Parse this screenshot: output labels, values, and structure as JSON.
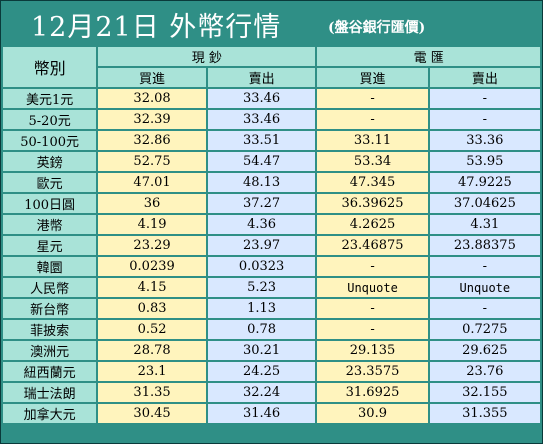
{
  "title": "12月21日 外幣行情",
  "source": "(盤谷銀行匯價)",
  "header": {
    "currency": "幣別",
    "cash_group": "現 鈔",
    "wire_group": "電 匯",
    "buy": "買進",
    "sell": "賣出"
  },
  "rows": [
    {
      "name": "美元1元",
      "cash_buy": "32.08",
      "cash_sell": "33.46",
      "wire_buy": "-",
      "wire_sell": "-"
    },
    {
      "name": "5-20元",
      "cash_buy": "32.39",
      "cash_sell": "33.46",
      "wire_buy": "-",
      "wire_sell": "-"
    },
    {
      "name": "50-100元",
      "cash_buy": "32.86",
      "cash_sell": "33.51",
      "wire_buy": "33.11",
      "wire_sell": "33.36"
    },
    {
      "name": "英鎊",
      "cash_buy": "52.75",
      "cash_sell": "54.47",
      "wire_buy": "53.34",
      "wire_sell": "53.95"
    },
    {
      "name": "歐元",
      "cash_buy": "47.01",
      "cash_sell": "48.13",
      "wire_buy": "47.345",
      "wire_sell": "47.9225"
    },
    {
      "name": "100日圓",
      "cash_buy": "36",
      "cash_sell": "37.27",
      "wire_buy": "36.39625",
      "wire_sell": "37.04625"
    },
    {
      "name": "港幣",
      "cash_buy": "4.19",
      "cash_sell": "4.36",
      "wire_buy": "4.2625",
      "wire_sell": "4.31"
    },
    {
      "name": "星元",
      "cash_buy": "23.29",
      "cash_sell": "23.97",
      "wire_buy": "23.46875",
      "wire_sell": "23.88375"
    },
    {
      "name": "韓圜",
      "cash_buy": "0.0239",
      "cash_sell": "0.0323",
      "wire_buy": "-",
      "wire_sell": "-"
    },
    {
      "name": "人民幣",
      "cash_buy": "4.15",
      "cash_sell": "5.23",
      "wire_buy": "Unquote",
      "wire_sell": "Unquote"
    },
    {
      "name": "新台幣",
      "cash_buy": "0.83",
      "cash_sell": "1.13",
      "wire_buy": "-",
      "wire_sell": "-"
    },
    {
      "name": "菲披索",
      "cash_buy": "0.52",
      "cash_sell": "0.78",
      "wire_buy": "-",
      "wire_sell": "0.7275"
    },
    {
      "name": "澳洲元",
      "cash_buy": "28.78",
      "cash_sell": "30.21",
      "wire_buy": "29.135",
      "wire_sell": "29.625"
    },
    {
      "name": "紐西蘭元",
      "cash_buy": "23.1",
      "cash_sell": "24.25",
      "wire_buy": "23.3575",
      "wire_sell": "23.76"
    },
    {
      "name": "瑞士法朗",
      "cash_buy": "31.35",
      "cash_sell": "32.24",
      "wire_buy": "31.6925",
      "wire_sell": "32.155"
    },
    {
      "name": "加拿大元",
      "cash_buy": "30.45",
      "cash_sell": "31.46",
      "wire_buy": "30.9",
      "wire_sell": "31.355"
    }
  ],
  "colors": {
    "frame": "#2f8f86",
    "name_cell": "#a9e3d8",
    "yellow_cell": "#fff4bd",
    "blue_cell": "#d9e8ff"
  }
}
